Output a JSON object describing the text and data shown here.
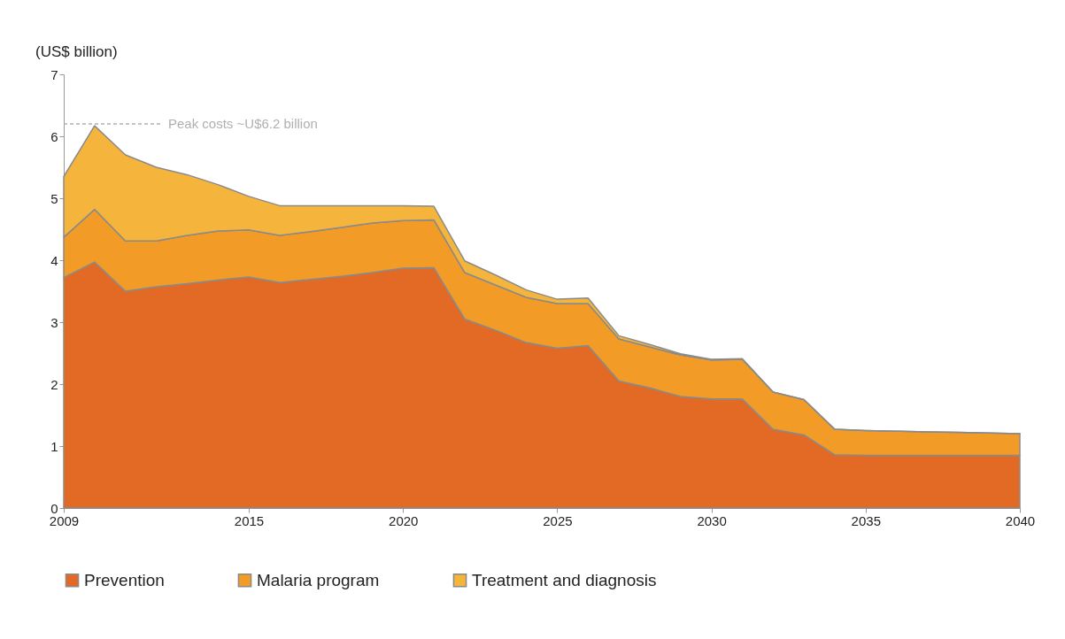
{
  "chart_data": {
    "type": "area",
    "stacked": true,
    "ylabel": "(US$ billion)",
    "x": [
      2009,
      2010,
      2011,
      2012,
      2013,
      2014,
      2015,
      2016,
      2017,
      2018,
      2019,
      2020,
      2021,
      2022,
      2023,
      2024,
      2025,
      2026,
      2027,
      2028,
      2029,
      2030,
      2031,
      2032,
      2033,
      2034,
      2035,
      2036,
      2037,
      2038,
      2039,
      2040
    ],
    "series": [
      {
        "name": "Prevention",
        "color": "#e36a25",
        "values": [
          3.72,
          3.97,
          3.5,
          3.57,
          3.62,
          3.68,
          3.73,
          3.64,
          3.69,
          3.74,
          3.8,
          3.87,
          3.88,
          3.05,
          2.87,
          2.67,
          2.58,
          2.62,
          2.05,
          1.94,
          1.8,
          1.76,
          1.76,
          1.27,
          1.18,
          0.86,
          0.85,
          0.85,
          0.85,
          0.85,
          0.85,
          0.85
        ]
      },
      {
        "name": "Malaria program",
        "color": "#f29b26",
        "values": [
          0.65,
          0.85,
          0.81,
          0.74,
          0.78,
          0.79,
          0.76,
          0.76,
          0.77,
          0.79,
          0.8,
          0.77,
          0.77,
          0.75,
          0.73,
          0.73,
          0.72,
          0.68,
          0.68,
          0.66,
          0.67,
          0.63,
          0.64,
          0.6,
          0.57,
          0.41,
          0.4,
          0.39,
          0.38,
          0.37,
          0.36,
          0.35
        ]
      },
      {
        "name": "Treatment and diagnosis",
        "color": "#f5b53c",
        "values": [
          0.98,
          1.35,
          1.39,
          1.19,
          0.98,
          0.75,
          0.54,
          0.48,
          0.42,
          0.35,
          0.28,
          0.24,
          0.22,
          0.19,
          0.16,
          0.12,
          0.07,
          0.09,
          0.05,
          0.04,
          0.02,
          0.01,
          0.01,
          0,
          0,
          0,
          0,
          0,
          0,
          0,
          0,
          0
        ]
      }
    ],
    "xlim": [
      2009,
      2040
    ],
    "xticks": [
      2009,
      2015,
      2020,
      2025,
      2030,
      2035,
      2040
    ],
    "ylim": [
      0,
      7
    ],
    "yticks": [
      0,
      1,
      2,
      3,
      4,
      5,
      6,
      7
    ],
    "grid": false,
    "legend": "bottom",
    "ref_lines": [
      {
        "axis": "y",
        "value": 6.2,
        "label": "Peak costs ~U$6.2 billion",
        "color": "#b0b0b0",
        "line_style": "dashed"
      }
    ]
  }
}
